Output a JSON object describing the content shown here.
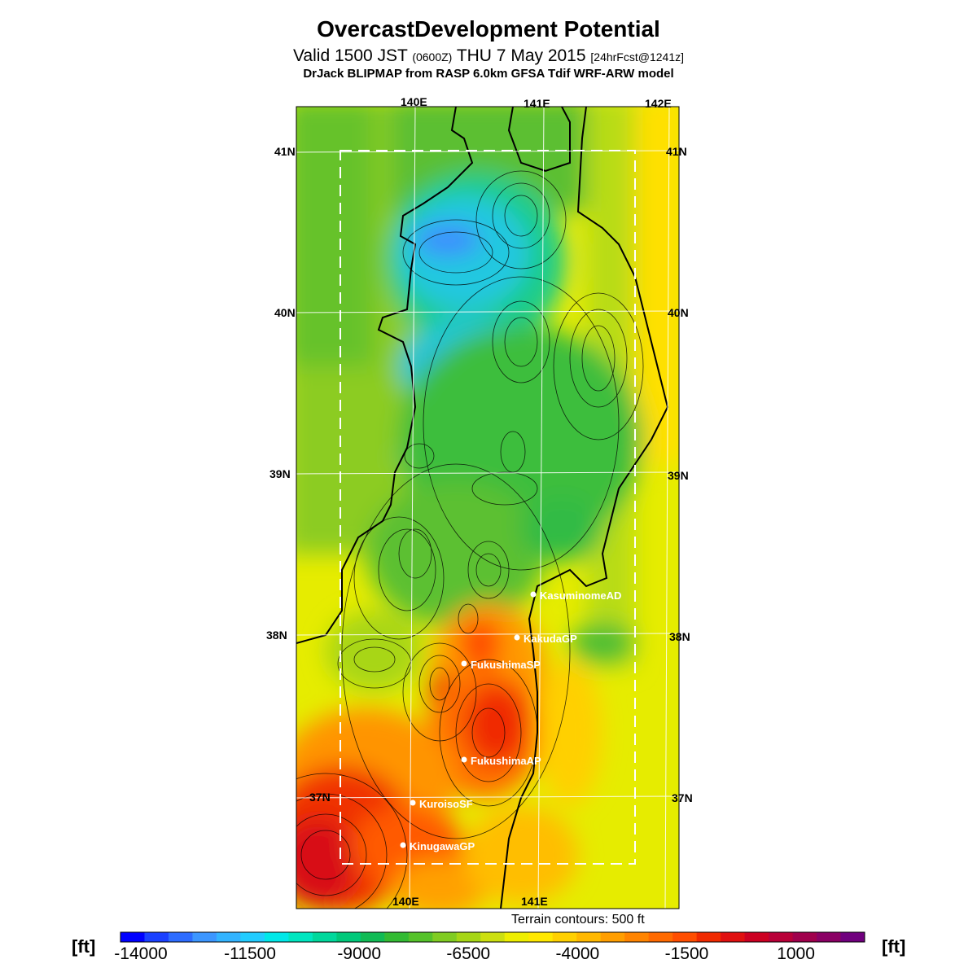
{
  "title": "OvercastDevelopment Potential",
  "subtitle": {
    "valid_prefix": "Valid 1500 JST",
    "utc": "(0600Z)",
    "date": "THU 7 May 2015",
    "forecast": "[24hrFcst@1241z]"
  },
  "subtitle2": "DrJack BLIPMAP from RASP 6.0km GFSA Tdif WRF-ARW model",
  "map": {
    "lon_labels_top": [
      "140E",
      "141E",
      "142E"
    ],
    "lon_labels_bottom": [
      "140E",
      "141E"
    ],
    "lat_labels": [
      "41N",
      "40N",
      "39N",
      "38N",
      "37N"
    ],
    "stations": [
      {
        "name": "KasuminomeAD"
      },
      {
        "name": "KakudaGP"
      },
      {
        "name": "FukushimaSP"
      },
      {
        "name": "FukushimaAP"
      },
      {
        "name": "KuroisoSF"
      },
      {
        "name": "KinugawaGP"
      }
    ]
  },
  "terrain_note": "Terrain contours: 500 ft",
  "colorbar": {
    "unit_left": "[ft]",
    "unit_right": "[ft]",
    "ticks": [
      "-14000",
      "-11500",
      "-9000",
      "-6500",
      "-4000",
      "-1500",
      "1000"
    ],
    "colors": [
      "#0000ff",
      "#1a40ff",
      "#2d6cff",
      "#3c96ff",
      "#33b4ff",
      "#22ccff",
      "#00e8e8",
      "#00e6c0",
      "#00d89c",
      "#00c87a",
      "#11bb55",
      "#33bb33",
      "#55c22a",
      "#80cc22",
      "#a6d616",
      "#ccdf10",
      "#eeee00",
      "#ffe800",
      "#ffd000",
      "#ffb800",
      "#ff9e00",
      "#ff8400",
      "#ff6a00",
      "#ff4e00",
      "#f02a00",
      "#e01010",
      "#cc0022",
      "#b80038",
      "#a0004c",
      "#8a0064",
      "#70007e"
    ]
  }
}
